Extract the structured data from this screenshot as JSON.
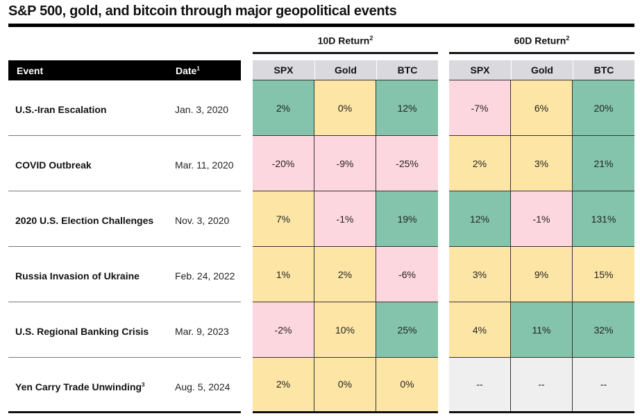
{
  "title": "S&P 500, gold, and bitcoin through major geopolitical events",
  "colors": {
    "green": "#84c4ad",
    "yellow": "#fde6a5",
    "pink": "#fdd7df",
    "gray": "#efefef",
    "header": "#d9d9de"
  },
  "chart_data": {
    "type": "table",
    "title": "S&P 500, gold, and bitcoin through major geopolitical events",
    "headers": {
      "event": "Event",
      "date": "Date",
      "date_footnote": "1"
    },
    "groups": [
      {
        "label": "10D Return",
        "footnote": "2",
        "columns": [
          "SPX",
          "Gold",
          "BTC"
        ]
      },
      {
        "label": "60D Return",
        "footnote": "2",
        "columns": [
          "SPX",
          "Gold",
          "BTC"
        ]
      }
    ],
    "rows": [
      {
        "event": "U.S.-Iran Escalation",
        "footnote": "",
        "date": "Jan. 3, 2020",
        "values": [
          "2%",
          "0%",
          "12%",
          "-7%",
          "6%",
          "20%"
        ],
        "colors": [
          "green",
          "yellow",
          "green",
          "pink",
          "yellow",
          "green"
        ]
      },
      {
        "event": "COVID Outbreak",
        "footnote": "",
        "date": "Mar. 11, 2020",
        "values": [
          "-20%",
          "-9%",
          "-25%",
          "2%",
          "3%",
          "21%"
        ],
        "colors": [
          "pink",
          "pink",
          "pink",
          "yellow",
          "yellow",
          "green"
        ]
      },
      {
        "event": "2020 U.S. Election Challenges",
        "footnote": "",
        "date": "Nov. 3, 2020",
        "values": [
          "7%",
          "-1%",
          "19%",
          "12%",
          "-1%",
          "131%"
        ],
        "colors": [
          "yellow",
          "pink",
          "green",
          "green",
          "pink",
          "green"
        ]
      },
      {
        "event": "Russia Invasion of Ukraine",
        "footnote": "",
        "date": "Feb. 24, 2022",
        "values": [
          "1%",
          "2%",
          "-6%",
          "3%",
          "9%",
          "15%"
        ],
        "colors": [
          "yellow",
          "yellow",
          "pink",
          "yellow",
          "yellow",
          "yellow"
        ]
      },
      {
        "event": "U.S. Regional Banking Crisis",
        "footnote": "",
        "date": "Mar. 9, 2023",
        "values": [
          "-2%",
          "10%",
          "25%",
          "4%",
          "11%",
          "32%"
        ],
        "colors": [
          "pink",
          "yellow",
          "green",
          "yellow",
          "green",
          "green"
        ]
      },
      {
        "event": "Yen Carry Trade Unwinding",
        "footnote": "3",
        "date": "Aug. 5, 2024",
        "values": [
          "2%",
          "0%",
          "0%",
          "--",
          "--",
          "--"
        ],
        "colors": [
          "yellow",
          "yellow",
          "yellow",
          "gray",
          "gray",
          "gray"
        ]
      }
    ]
  }
}
